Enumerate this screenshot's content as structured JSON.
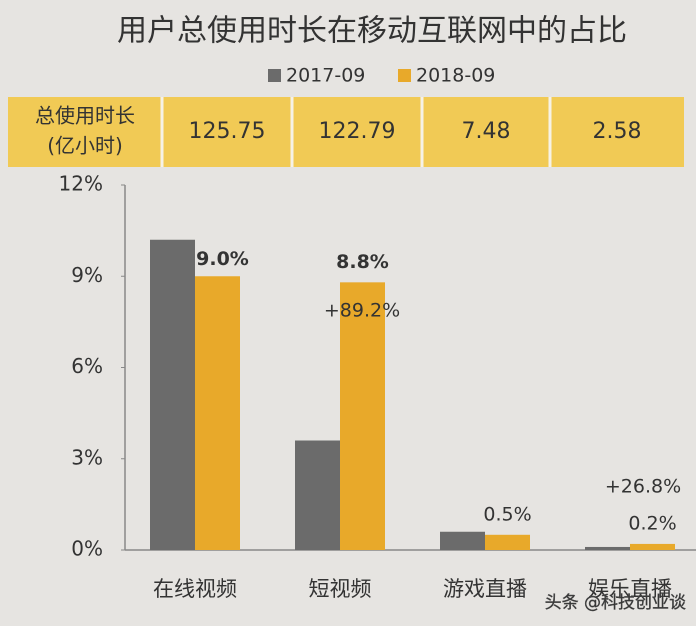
{
  "chart_data": {
    "type": "bar",
    "title": "用户总使用时长在移动互联网中的占比",
    "table": {
      "header": [
        "总使用时长",
        "(亿小时)"
      ],
      "values": [
        125.75,
        122.79,
        7.48,
        2.58
      ]
    },
    "categories": [
      "在线视频",
      "短视频",
      "游戏直播",
      "娱乐直播"
    ],
    "series": [
      {
        "name": "2017-09",
        "color": "#6b6b6b",
        "values": [
          10.2,
          3.6,
          0.6,
          0.1
        ]
      },
      {
        "name": "2018-09",
        "color": "#e8a92a",
        "values": [
          9.0,
          8.8,
          0.5,
          0.2
        ],
        "value_labels": [
          "9.0%",
          "8.8%",
          "0.5%",
          "0.2%"
        ],
        "value_label_colors": [
          "#b3322c",
          "#b3322c",
          "#444444",
          "#444444"
        ]
      }
    ],
    "annotations": [
      {
        "text": "+89.2%",
        "color": "#b3322c"
      },
      {
        "text": "+26.8%",
        "color": "#444444"
      }
    ],
    "ylim": [
      0,
      12
    ],
    "yticks": [
      {
        "value": 0,
        "label": "0%"
      },
      {
        "value": 3,
        "label": "3%"
      },
      {
        "value": 6,
        "label": "6%"
      },
      {
        "value": 9,
        "label": "9%"
      },
      {
        "value": 12,
        "label": "12%"
      }
    ],
    "grid": false,
    "watermark": "头条 @科技创业谈"
  }
}
